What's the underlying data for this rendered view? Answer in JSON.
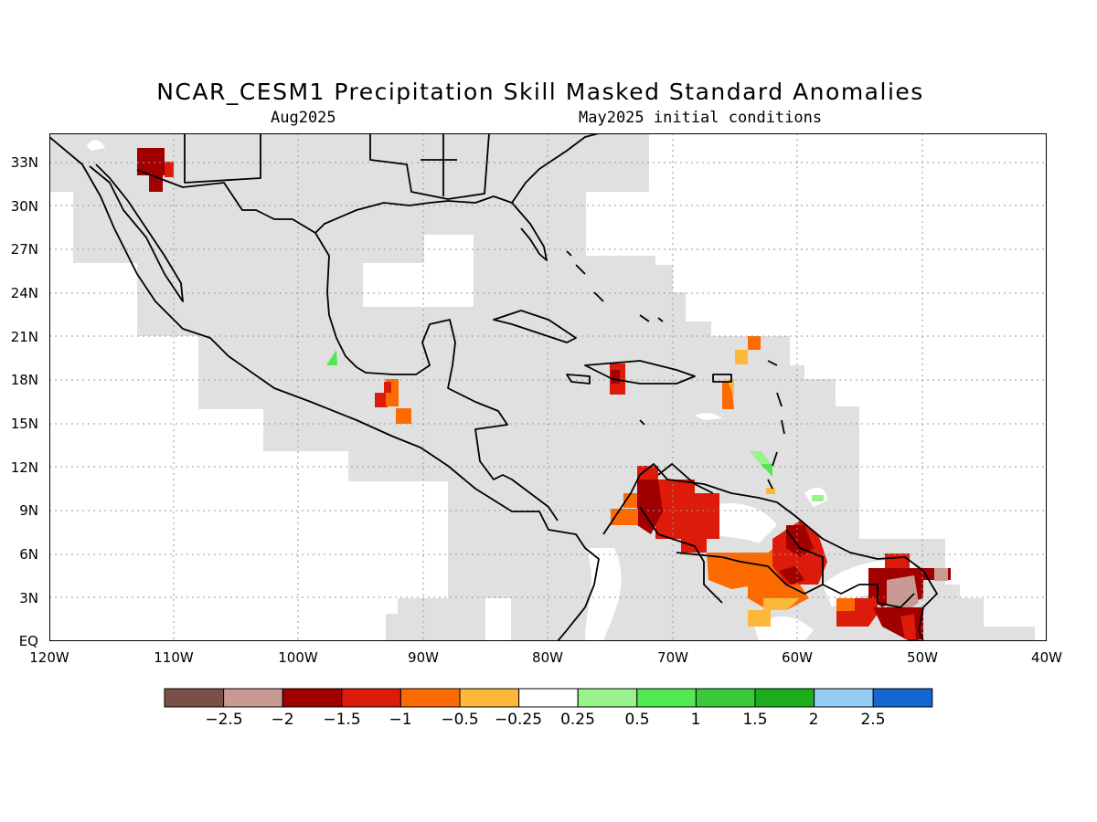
{
  "header": {
    "title": "NCAR_CESM1 Precipitation Skill Masked Standard Anomalies",
    "left_subtitle": "Aug2025",
    "right_subtitle": "May2025 initial conditions"
  },
  "map": {
    "region": "Central America and Caribbean",
    "lon_range": [
      -120,
      -40
    ],
    "lat_range": [
      0,
      35
    ],
    "lat_ticks": [
      "EQ",
      "3N",
      "6N",
      "9N",
      "12N",
      "15N",
      "18N",
      "21N",
      "24N",
      "27N",
      "30N",
      "33N"
    ],
    "lon_ticks": [
      "120W",
      "110W",
      "100W",
      "90W",
      "80W",
      "70W",
      "60W",
      "50W",
      "40W"
    ],
    "gridlines": true,
    "masked_color": "#e0e0e0"
  },
  "colorbar": {
    "colors": [
      "#7a4f47",
      "#c99a92",
      "#a00000",
      "#dd1b0a",
      "#fc6a00",
      "#fdb839",
      "#ffffff",
      "#99f28c",
      "#52e852",
      "#3ac93a",
      "#1cad1c",
      "#95cdf5",
      "#1666d4"
    ],
    "labels": [
      "−2.5",
      "−2",
      "−1.5",
      "−1",
      "−0.5",
      "−0.25",
      "0.25",
      "0.5",
      "1",
      "1.5",
      "2",
      "2.5"
    ]
  }
}
